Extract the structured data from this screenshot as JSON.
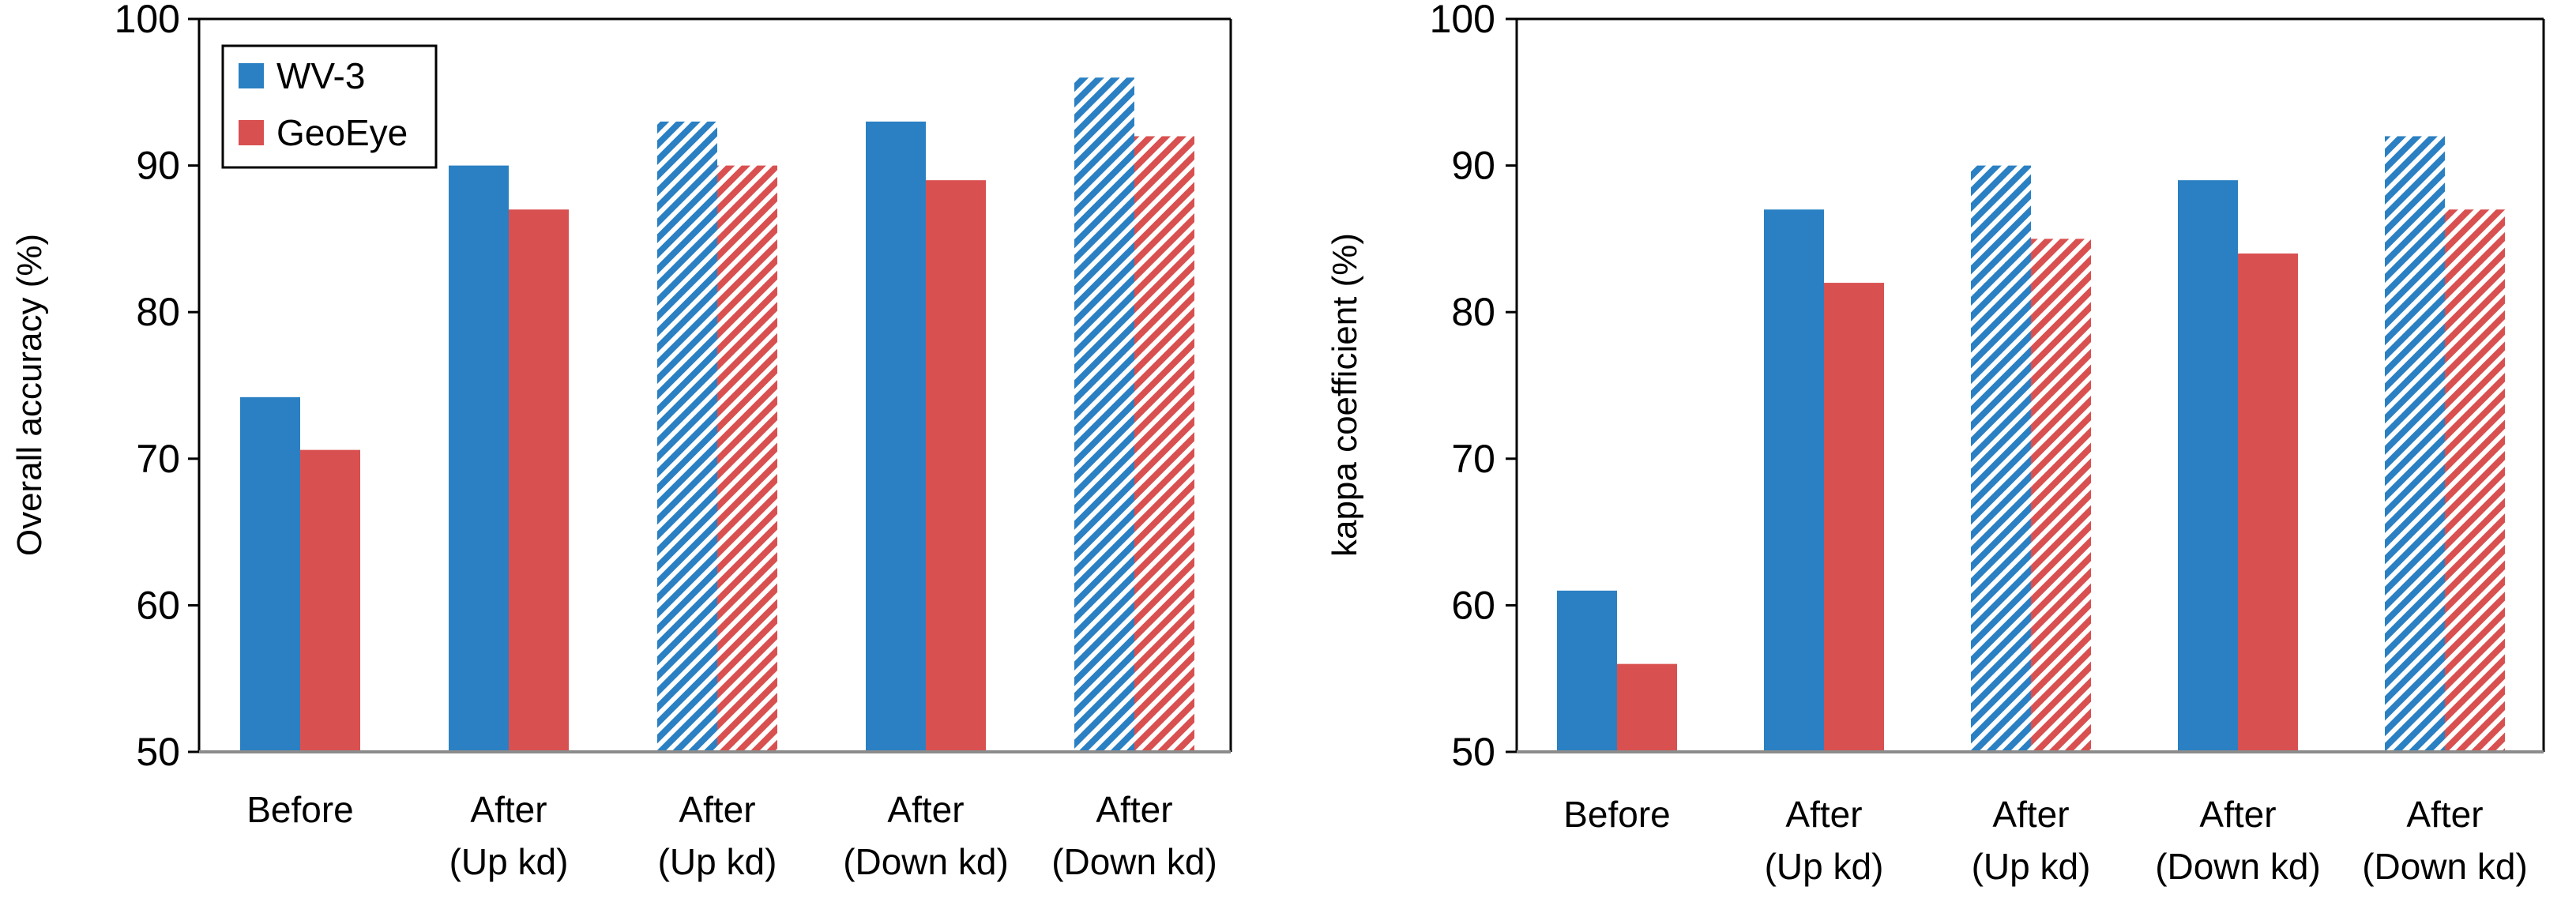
{
  "colors": {
    "wv3": "#2a80c2",
    "geoeye": "#d95050",
    "axis": "#000000",
    "baseline": "#8c8c8c"
  },
  "legend": {
    "entries": [
      "WV-3",
      "GeoEye"
    ]
  },
  "chart_data": [
    {
      "type": "bar",
      "ylabel": "Overall accuracy (%)",
      "ylim": [
        50,
        100
      ],
      "yticks": [
        50,
        60,
        70,
        80,
        90,
        100
      ],
      "categories": [
        [
          "Before"
        ],
        [
          "After",
          "(Up kd)"
        ],
        [
          "After",
          "(Up kd)"
        ],
        [
          "After",
          "(Down kd)"
        ],
        [
          "After",
          "(Down kd)"
        ]
      ],
      "hatched": [
        false,
        false,
        true,
        false,
        true
      ],
      "series": [
        {
          "name": "WV-3",
          "values": [
            74.2,
            90,
            93,
            93,
            96
          ]
        },
        {
          "name": "GeoEye",
          "values": [
            70.6,
            87,
            90,
            89,
            92
          ]
        }
      ],
      "legend_position": "top-left"
    },
    {
      "type": "bar",
      "ylabel": "kappa coefficient (%)",
      "ylim": [
        50,
        100
      ],
      "yticks": [
        50,
        60,
        70,
        80,
        90,
        100
      ],
      "categories": [
        [
          "Before"
        ],
        [
          "After",
          "(Up kd)"
        ],
        [
          "After",
          "(Up kd)"
        ],
        [
          "After",
          "(Down kd)"
        ],
        [
          "After",
          "(Down kd)"
        ]
      ],
      "hatched": [
        false,
        false,
        true,
        false,
        true
      ],
      "series": [
        {
          "name": "WV-3",
          "values": [
            61,
            87,
            90,
            89,
            92
          ]
        },
        {
          "name": "GeoEye",
          "values": [
            56,
            82,
            85,
            84,
            87
          ]
        }
      ]
    }
  ]
}
